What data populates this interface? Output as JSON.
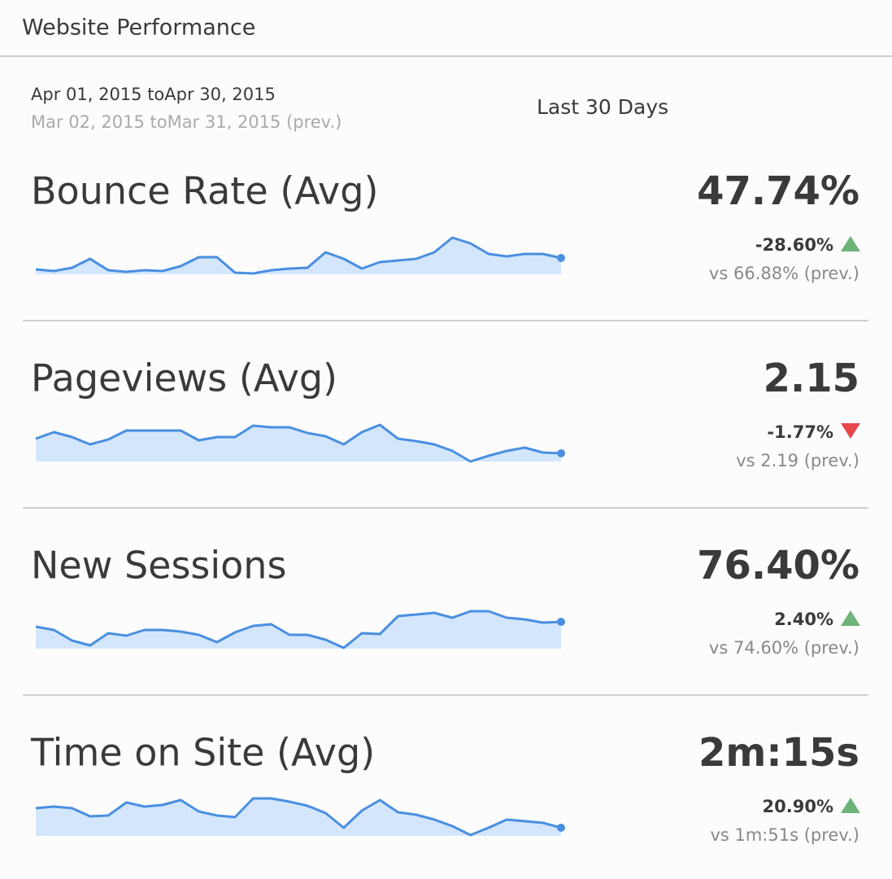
{
  "header": {
    "title": "Website Performance"
  },
  "date_range": {
    "current": "Apr 01, 2015 toApr 30, 2015",
    "previous": "Mar 02, 2015 toMar 31, 2015 (prev.)",
    "period": "Last 30 Days"
  },
  "metrics": [
    {
      "title": "Bounce Rate (Avg)",
      "value": "47.74%",
      "change": "-28.60%",
      "comparison": "vs 66.88% (prev.)",
      "direction": "up",
      "arrow_color": "#6db37a",
      "line_color": "#4a8fe0",
      "fill_color": "#d3e6fb",
      "ylim": [
        0,
        50
      ],
      "sparkline": [
        6,
        4,
        8,
        19,
        5,
        3,
        5,
        4,
        10,
        21,
        21,
        2,
        1,
        5,
        7,
        8,
        27,
        19,
        7,
        15,
        17,
        19,
        27,
        45,
        38,
        25,
        22,
        25,
        25,
        20
      ]
    },
    {
      "title": "Pageviews (Avg)",
      "value": "2.15",
      "change": "-1.77%",
      "comparison": "vs 2.19 (prev.)",
      "direction": "down",
      "arrow_color": "#e5474b",
      "line_color": "#4a8fe0",
      "fill_color": "#d3e6fb",
      "ylim": [
        0,
        50
      ],
      "sparkline": [
        28,
        36,
        30,
        21,
        27,
        38,
        38,
        38,
        38,
        26,
        30,
        30,
        44,
        42,
        42,
        35,
        31,
        21,
        36,
        45,
        28,
        25,
        21,
        13,
        0,
        7,
        13,
        17,
        11,
        10
      ]
    },
    {
      "title": "New Sessions",
      "value": "76.40%",
      "change": "2.40%",
      "comparison": "vs 74.60% (prev.)",
      "direction": "up",
      "arrow_color": "#6db37a",
      "line_color": "#4a8fe0",
      "fill_color": "#d3e6fb",
      "ylim": [
        0,
        50
      ],
      "sparkline": [
        27,
        23,
        10,
        4,
        19,
        16,
        23,
        23,
        21,
        17,
        8,
        20,
        28,
        30,
        17,
        17,
        11,
        1,
        19,
        18,
        40,
        42,
        44,
        38,
        46,
        46,
        38,
        36,
        32,
        33
      ]
    },
    {
      "title": "Time on Site (Avg)",
      "value": "2m:15s",
      "change": "20.90%",
      "comparison": "vs 1m:51s (prev.)",
      "direction": "up",
      "arrow_color": "#6db37a",
      "line_color": "#4a8fe0",
      "fill_color": "#d3e6fb",
      "ylim": [
        0,
        50
      ],
      "sparkline": [
        34,
        36,
        34,
        24,
        25,
        41,
        36,
        38,
        44,
        30,
        25,
        23,
        46,
        46,
        42,
        37,
        28,
        10,
        31,
        44,
        29,
        26,
        20,
        12,
        1,
        10,
        20,
        18,
        16,
        10
      ]
    }
  ]
}
